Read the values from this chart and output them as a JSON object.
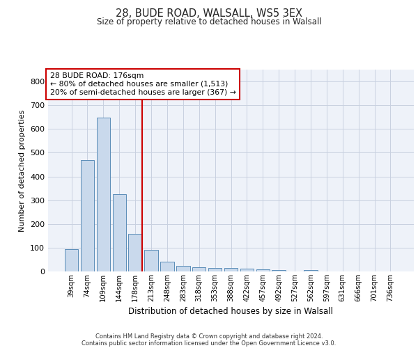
{
  "title_line1": "28, BUDE ROAD, WALSALL, WS5 3EX",
  "title_line2": "Size of property relative to detached houses in Walsall",
  "xlabel": "Distribution of detached houses by size in Walsall",
  "ylabel": "Number of detached properties",
  "categories": [
    "39sqm",
    "74sqm",
    "109sqm",
    "144sqm",
    "178sqm",
    "213sqm",
    "248sqm",
    "283sqm",
    "318sqm",
    "353sqm",
    "388sqm",
    "422sqm",
    "457sqm",
    "492sqm",
    "527sqm",
    "562sqm",
    "597sqm",
    "631sqm",
    "666sqm",
    "701sqm",
    "736sqm"
  ],
  "values": [
    95,
    470,
    648,
    325,
    158,
    92,
    40,
    24,
    18,
    14,
    14,
    12,
    8,
    5,
    0,
    7,
    0,
    0,
    0,
    0,
    0
  ],
  "bar_color": "#c9d9ec",
  "bar_edge_color": "#5b8db8",
  "vline_index": 4,
  "vline_color": "#cc0000",
  "annotation_text": "28 BUDE ROAD: 176sqm\n← 80% of detached houses are smaller (1,513)\n20% of semi-detached houses are larger (367) →",
  "annotation_box_color": "#ffffff",
  "annotation_box_edge": "#cc0000",
  "ylim": [
    0,
    850
  ],
  "yticks": [
    0,
    100,
    200,
    300,
    400,
    500,
    600,
    700,
    800
  ],
  "grid_color": "#c8d0e0",
  "background_color": "#eef2f9",
  "footer_line1": "Contains HM Land Registry data © Crown copyright and database right 2024.",
  "footer_line2": "Contains public sector information licensed under the Open Government Licence v3.0."
}
